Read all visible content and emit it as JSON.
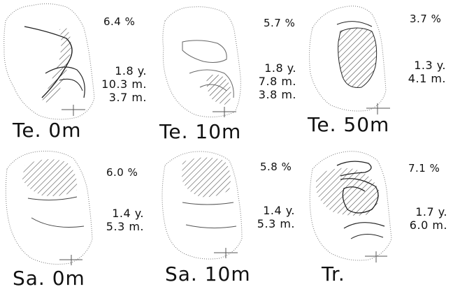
{
  "panels": [
    {
      "label": "Te. 0m",
      "percent": "6.4 %",
      "stats": [
        "1.8 y.",
        "10.3 m.",
        "3.7 m."
      ]
    },
    {
      "label": "Te. 10m",
      "percent": "5.7 %",
      "stats": [
        "1.8 y.",
        "7.8 m.",
        "3.8 m."
      ]
    },
    {
      "label": "Te. 50m",
      "percent": "3.7 %",
      "stats": [
        "1.3 y.",
        "4.1 m."
      ]
    },
    {
      "label": "Sa. 0m",
      "percent": "6.0 %",
      "stats": [
        "1.4 y.",
        "5.3 m."
      ]
    },
    {
      "label": "Sa. 10m",
      "percent": "5.8 %",
      "stats": [
        "1.4 y.",
        "5.3 m."
      ]
    },
    {
      "label": "Tr.",
      "percent": "7.1 %",
      "stats": [
        "1.7 y.",
        "6.0 m."
      ]
    }
  ]
}
